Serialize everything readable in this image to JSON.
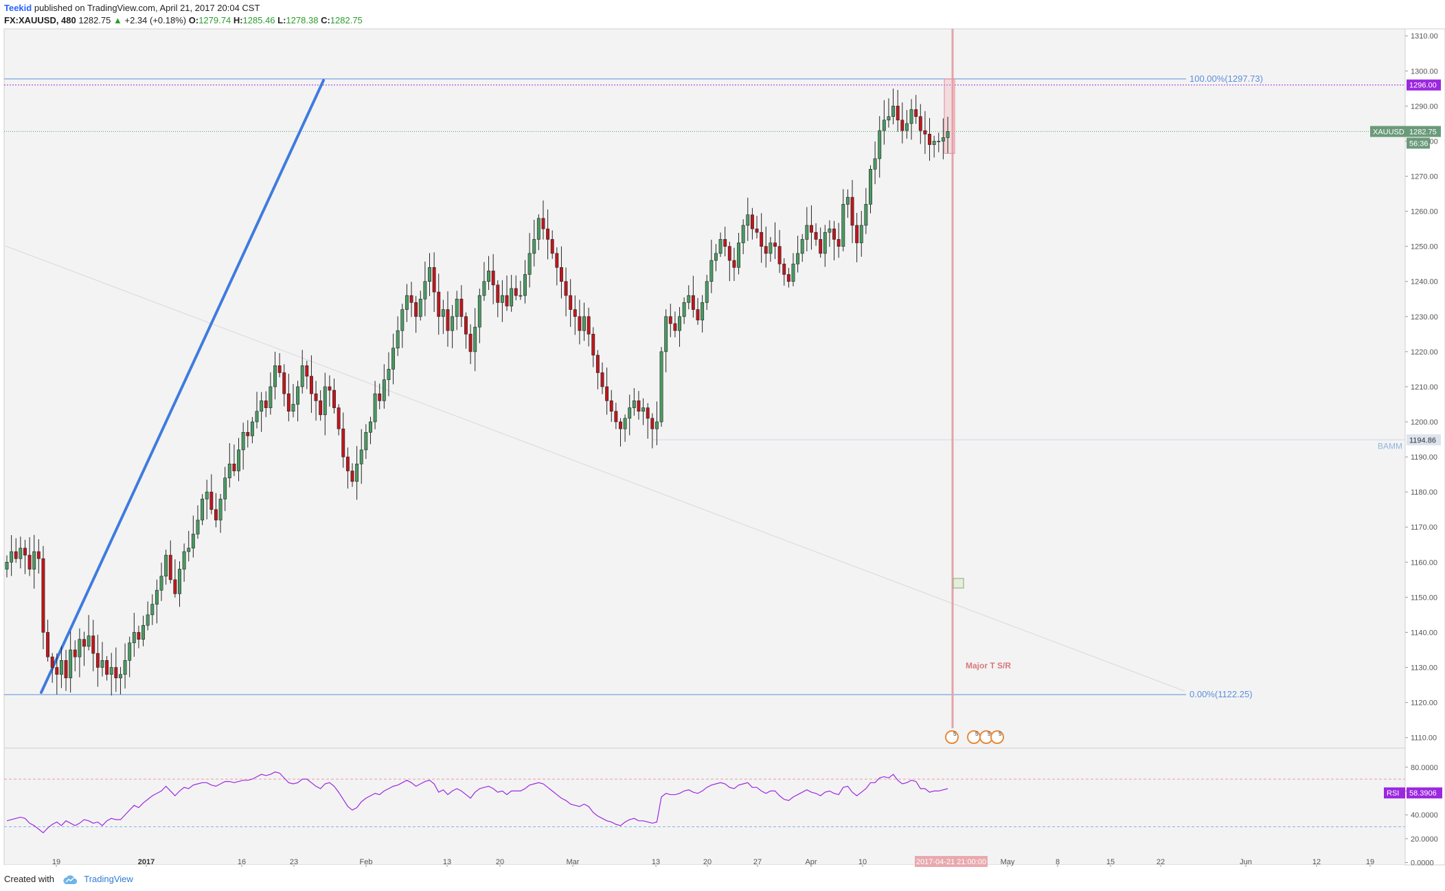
{
  "header": {
    "author": "Teekid",
    "published": "published on TradingView.com, April 21, 2017 20:04 CST",
    "symbol": "FX:XAUUSD, 480",
    "last": "1282.75",
    "change": "+2.34 (+0.18%)",
    "o_label": "O:",
    "o": "1279.74",
    "h_label": "H:",
    "h": "1285.46",
    "l_label": "L:",
    "l": "1278.38",
    "c_label": "C:",
    "c": "1282.75"
  },
  "footer": {
    "created": "Created with",
    "brand": "TradingView"
  },
  "colors": {
    "up": "#4a9a63",
    "down": "#c0161d",
    "trendline": "#3f7be0",
    "fib": "#5b8fd9",
    "purple": "#9c27e0",
    "rsi": "#9c27e0",
    "price_tag": "#6b9a7a",
    "red_band": "#e3a3a8"
  },
  "chart_data": {
    "type": "candlestick",
    "symbol": "XAUUSD",
    "timeframe": "480",
    "y_axis": {
      "ticks": [
        "1310.00",
        "1300.00",
        "1290.00",
        "1280.00",
        "1270.00",
        "1260.00",
        "1250.00",
        "1240.00",
        "1230.00",
        "1220.00",
        "1210.00",
        "1200.00",
        "1190.00",
        "1180.00",
        "1170.00",
        "1160.00",
        "1150.00",
        "1140.00",
        "1130.00",
        "1120.00",
        "1110.00"
      ],
      "range": [
        1107,
        1312
      ]
    },
    "x_axis": {
      "ticks": [
        "19",
        "2017",
        "16",
        "23",
        "Feb",
        "13",
        "20",
        "Mar",
        "13",
        "20",
        "27",
        "Apr",
        "10",
        "May",
        "8",
        "15",
        "22",
        "Jun",
        "12",
        "19"
      ],
      "bold_ticks": [
        "2017"
      ]
    },
    "closes": [
      1160,
      1163,
      1161,
      1164,
      1162,
      1158,
      1163,
      1161,
      1140,
      1133,
      1130,
      1128,
      1132,
      1127,
      1135,
      1133,
      1138,
      1136,
      1139,
      1134,
      1130,
      1132,
      1128,
      1130,
      1127,
      1128,
      1132,
      1137,
      1140,
      1138,
      1142,
      1145,
      1148,
      1152,
      1156,
      1162,
      1155,
      1151,
      1158,
      1163,
      1164,
      1168,
      1172,
      1178,
      1180,
      1175,
      1172,
      1178,
      1184,
      1188,
      1186,
      1192,
      1197,
      1196,
      1200,
      1203,
      1206,
      1204,
      1210,
      1216,
      1214,
      1208,
      1203,
      1205,
      1210,
      1216,
      1213,
      1208,
      1206,
      1202,
      1210,
      1209,
      1204,
      1198,
      1190,
      1186,
      1183,
      1188,
      1192,
      1197,
      1200,
      1208,
      1206,
      1212,
      1215,
      1221,
      1226,
      1232,
      1236,
      1234,
      1230,
      1235,
      1240,
      1244,
      1237,
      1230,
      1232,
      1226,
      1230,
      1235,
      1230,
      1225,
      1220,
      1227,
      1236,
      1240,
      1243,
      1239,
      1234,
      1236,
      1233,
      1238,
      1236,
      1236,
      1242,
      1248,
      1252,
      1258,
      1255,
      1252,
      1248,
      1244,
      1240,
      1236,
      1232,
      1230,
      1226,
      1230,
      1225,
      1219,
      1214,
      1210,
      1206,
      1203,
      1200,
      1198,
      1201,
      1204,
      1206,
      1203,
      1204,
      1201,
      1198,
      1200,
      1220,
      1230,
      1228,
      1226,
      1230,
      1234,
      1236,
      1232,
      1229,
      1234,
      1240,
      1246,
      1248,
      1252,
      1250,
      1246,
      1244,
      1251,
      1256,
      1259,
      1255,
      1254,
      1250,
      1248,
      1251,
      1250,
      1245,
      1242,
      1240,
      1245,
      1248,
      1252,
      1256,
      1254,
      1252,
      1248,
      1254,
      1255,
      1252,
      1250,
      1262,
      1264,
      1256,
      1251,
      1256,
      1262,
      1272,
      1275,
      1283,
      1286,
      1287,
      1290,
      1286,
      1283,
      1285,
      1289,
      1287,
      1283,
      1282,
      1279,
      1280,
      1280,
      1281,
      1282.75
    ],
    "annotations": {
      "fib_100": "100.00%(1297.73)",
      "fib_0": "0.00%(1122.25)",
      "level_1296": "1296.00",
      "bamm_label": "BAMM",
      "bamm_value": "1194.86",
      "current_symbol": "XAUUSD",
      "current_price": "1282.75",
      "countdown": "56:36",
      "major_label": "Major T S/R",
      "date_highlight": "2017-04-21 21:00:00"
    },
    "rsi": {
      "label": "RSI",
      "value": "58.3906",
      "ticks": [
        "80.0000",
        "60.0000",
        "40.0000",
        "20.0000",
        "0.0000"
      ],
      "range": [
        -2,
        96
      ],
      "overbought": 70,
      "oversold": 30,
      "values": [
        35,
        36,
        37,
        38,
        37,
        33,
        31,
        28,
        25,
        29,
        32,
        34,
        31,
        35,
        33,
        31,
        33,
        36,
        35,
        33,
        34,
        31,
        35,
        37,
        36,
        36,
        40,
        44,
        48,
        46,
        50,
        53,
        56,
        58,
        60,
        64,
        60,
        56,
        60,
        63,
        62,
        65,
        66,
        67,
        67,
        65,
        64,
        66,
        68,
        68,
        67,
        68,
        69,
        69,
        70,
        72,
        74,
        73,
        74,
        76,
        75,
        71,
        67,
        66,
        67,
        70,
        70,
        67,
        64,
        62,
        66,
        67,
        64,
        59,
        53,
        47,
        44,
        46,
        51,
        54,
        56,
        58,
        57,
        60,
        62,
        64,
        65,
        67,
        69,
        67,
        64,
        66,
        68,
        69,
        66,
        59,
        61,
        57,
        60,
        62,
        60,
        57,
        54,
        59,
        62,
        63,
        64,
        62,
        59,
        60,
        57,
        60,
        60,
        60,
        62,
        65,
        66,
        67,
        66,
        63,
        60,
        57,
        54,
        52,
        49,
        48,
        47,
        49,
        47,
        42,
        39,
        37,
        35,
        34,
        32,
        31,
        34,
        36,
        37,
        35,
        35,
        34,
        33,
        34,
        55,
        58,
        57,
        57,
        58,
        60,
        61,
        59,
        58,
        60,
        63,
        65,
        66,
        67,
        66,
        63,
        62,
        65,
        66,
        67,
        63,
        63,
        60,
        58,
        60,
        60,
        56,
        53,
        52,
        55,
        57,
        59,
        61,
        59,
        58,
        56,
        59,
        60,
        58,
        57,
        63,
        64,
        59,
        56,
        59,
        62,
        67,
        67,
        71,
        72,
        71,
        74,
        69,
        66,
        67,
        69,
        68,
        62,
        62,
        59,
        60,
        60,
        61,
        62
      ]
    }
  }
}
